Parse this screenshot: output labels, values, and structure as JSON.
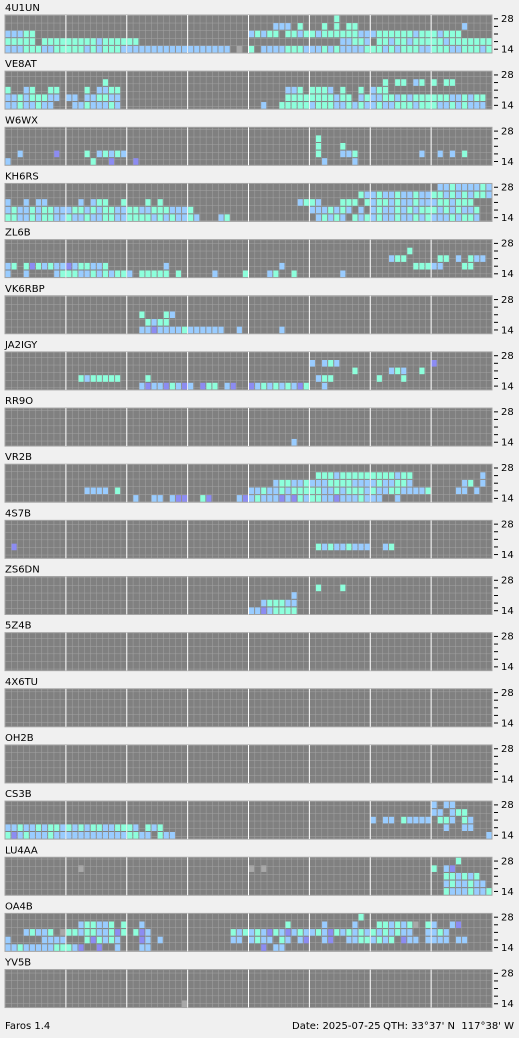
{
  "app": "Faros 1.4",
  "date": "Date: 2025-07-25",
  "qth": "QTH: 33°37' N  117°38' W",
  "band_top": "28",
  "band_bottom": "14",
  "colors": {
    "c": "#8dffdc",
    "b": "#99ccff",
    "p": "#8c8cf2",
    "l": "#a8a8a8"
  },
  "panels": [
    {
      "label": "4U1UN",
      "rows": [
        "......................................................c",
        "............................................bbb.c...c.c.cc.................b..",
        "bbbcc...................................bcbcc.ccbccbccccccbbbccccccbcccbccc",
        "ccccc.cccccccccbcccccc.................................bbccb.ccbccbcccccbccccccccccbcccccbcc",
        "bbbcccbbcccccbcbcccbbbbbbbbbbbbbbbbbb.l.c.bbbbcccbbbcbcbbbbcccbcbcccbbcccbbcccbccc"
      ]
    },
    {
      "label": "VE8AT",
      "rows": [
        "",
        "................c.............................................c.cc.bc.c.cc.",
        "c..bc..cc....c.bbcc...........................bbc.cccb.c..c.bcc",
        "bbcbcccbb.bb.bbccbb...........................ccccccccbcc.bcbbccbcbccccccbbcbcc",
        "bbcbbcbb...bbcbbbcb.......................b..cccccbcccbbcbcbbcbbcccbcccbbcbcbbb"
      ]
    },
    {
      "label": "W6WX",
      "rows": [
        "",
        "...................................................c",
        "...................................................c...c",
        "..b.....p....c.bcbcb...............................c...bbc..........b..b.b.c",
        "b.............c..p...p..............................b....b"
      ]
    },
    {
      "label": "KH6RS",
      "rows": [
        ".......................................................................bbcbbbbcb",
        "..........................................................cbbcbbcbbcbbccbcbcbccb",
        "b..b.bb.....b.bcc..c...c.c......................bccb...ccc.cbccbcbbcbbbccbccc",
        "bcbbcbccbbbccbcbccbbccbbcccbbbc...................bbbcbcb.b.bcbbcbcbcccbcbcbbc",
        "ccbbcbccbbcbbcbbccbbccccbcbcbbcb...bc..............bcbcb.cbcbcbbcbbcbcbbbcbccb"
      ]
    },
    {
      "label": "ZL6B",
      "rows": [
        "",
        "..................................................................c",
        "...............................................................bcc.....cc.b.cbb",
        "bc.cpcbcbbpbccbbc.........b..................b.....................cccbb...cc.......p",
        "b..b....bcccbbcbcbccb.ccccc.c.....b....c...bc..c.......b"
      ]
    },
    {
      "label": "VK6RBP",
      "rows": [
        "",
        "",
        "......................c...cb",
        ".......................cbcc",
        "......................bbpbbbbcbbbbbb..b......b"
      ]
    },
    {
      "label": "JA2IGY",
      "rows": [
        "",
        "..................................................b.bcb...............p",
        ".........................................................c.....bcb..c",
        "............cbccccc....c...........................bcc.......c...c",
        "......................bpbbpcbpb.pcc.bp..pbcbcbcbpc..b"
      ]
    },
    {
      "label": "RR9O",
      "rows": [
        "",
        "",
        "",
        "",
        "...............................................b"
      ]
    },
    {
      "label": "VR2B",
      "rows": [
        "",
        "...................................................cccbcccccccccbcc...........b.b",
        "............................................bccbbcbbbccccbbbbcbbccb........bc.b",
        ".............bbbb.c.....................bbcbbcbcccccbbcbcccbcbbccbbbbc....bb.b",
        ".....................b..bb.bpp..cp....bpbcbbbpbpcbccbbpbbbcbbb..b"
      ]
    },
    {
      "label": "4S7B",
      "rows": [
        "",
        "",
        "",
        ".p.................................................cbcbbcbbb..bc"
      ]
    },
    {
      "label": "ZS6DN",
      "rows": [
        "",
        "...................................................c...c",
        "...............................................b",
        "..........................................bcccbb",
        "........................................bbpbcccc"
      ]
    },
    {
      "label": "5Z4B",
      "rows": []
    },
    {
      "label": "4X6TU",
      "rows": []
    },
    {
      "label": "OH2B",
      "rows": []
    },
    {
      "label": "CS3B",
      "rows": [
        "......................................................................b.bb",
        "......................................................................bb.bcc",
        "............................................................b.bb.cbbbb.ccb.cb...b...c",
        "bbcbbcbccbcbcbccbbcccb.cbc..............................................b..bb..........bcb",
        "cpbcbbbcbbbbbbbbbbbbccbb.cbb...................................................bcc"
      ]
    },
    {
      "label": "LU4AA",
      "rows": [
        "..........................................................................c",
        "............l...........................l.l...........................c.bp",
        "........................................................................ccbcbc",
        "........................................................................bcbbcbb",
        "........................................................................cbbbcbbc"
      ]
    },
    {
      "label": "OA4B",
      "rows": [
        "..........................................................c",
        "............bccbbc.c..b.......................c.....b....b...ccbcbcl.cb..bp",
        "...bcbbc.lccbccbbcpc.cpb.............cbcbcbpcbpbcbbcbpcbcbcbcbcbcbb..bbcb",
        "b.....bbbb...cpcbcb...pb.b...........bb.bcbb.cb.bp..bp..bbccbcbc.pbb.bbbb.bb",
        "bbcbbbbbcccbp..p..b...bb..................p.bb"
      ]
    },
    {
      "label": "YV5B",
      "rows": [
        "",
        "",
        "",
        "",
        ".............................l"
      ]
    }
  ]
}
